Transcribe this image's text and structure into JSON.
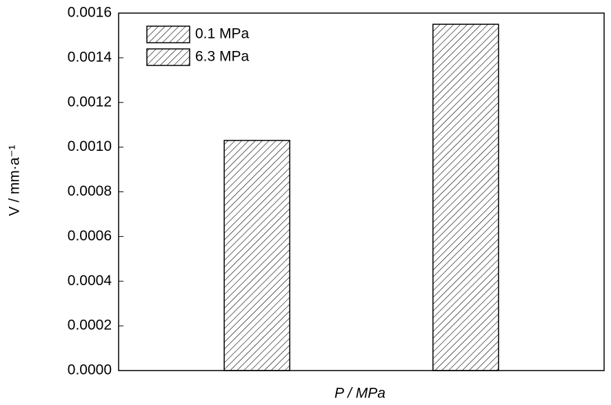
{
  "chart_data": {
    "type": "bar",
    "xlabel": "P / MPa",
    "ylabel": "V / mm·a⁻¹",
    "categories": [
      null
    ],
    "series": [
      {
        "name": "0.1 MPa",
        "color": "#000000",
        "values": [
          0.00103
        ]
      },
      {
        "name": "6.3 MPa",
        "color": "#000000",
        "values": [
          0.00155
        ]
      }
    ],
    "ylim": [
      0,
      0.0016
    ],
    "yticks": [
      {
        "value": 0,
        "label": "0.0000"
      },
      {
        "value": 0.0002,
        "label": "0.0002"
      },
      {
        "value": 0.0004,
        "label": "0.0004"
      },
      {
        "value": 0.0006,
        "label": "0.0006"
      },
      {
        "value": 0.0008,
        "label": "0.0008"
      },
      {
        "value": 0.001,
        "label": "0.0010"
      },
      {
        "value": 0.0012,
        "label": "0.0012"
      },
      {
        "value": 0.0014,
        "label": "0.0014"
      },
      {
        "value": 0.0016,
        "label": "0.0016"
      }
    ],
    "legend": "upper left",
    "grid": false
  }
}
